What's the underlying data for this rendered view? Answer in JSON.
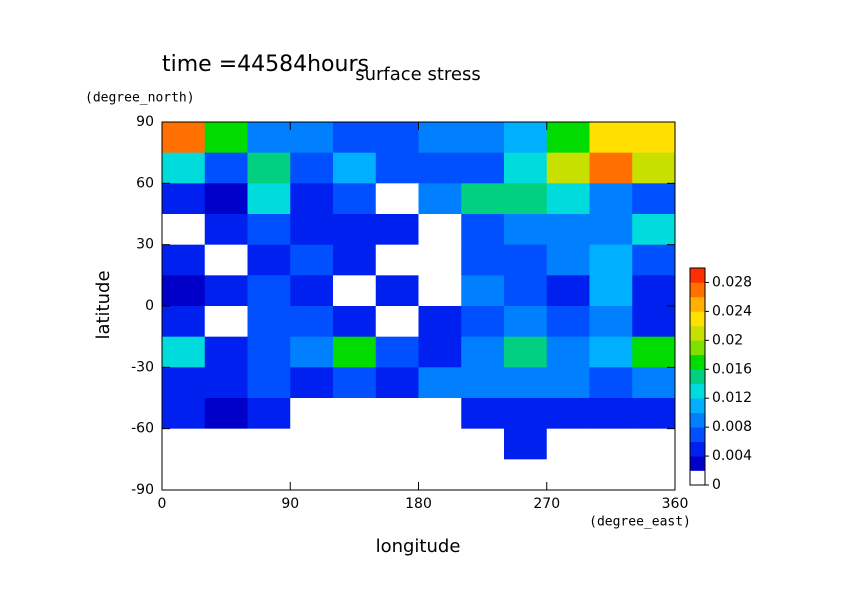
{
  "chart_data": {
    "type": "contour",
    "title": "surface stress",
    "subtitle": "time =44584hours",
    "x_label": "longitude",
    "x_unit": "(degree_east)",
    "y_label": "latitude",
    "y_unit": "(degree_north)",
    "xlim": [
      0,
      360
    ],
    "ylim": [
      -90,
      90
    ],
    "xticks": [
      0,
      90,
      180,
      270,
      360
    ],
    "yticks": [
      -90,
      -60,
      -30,
      0,
      30,
      60,
      90
    ],
    "x": [
      15,
      45,
      75,
      105,
      135,
      165,
      195,
      225,
      255,
      285,
      315,
      345
    ],
    "y": [
      82.5,
      67.5,
      52.5,
      37.5,
      22.5,
      7.5,
      -7.5,
      -22.5,
      -37.5,
      -52.5,
      -67.5,
      -82.5
    ],
    "values": [
      [
        0.026,
        0.016,
        0.008,
        0.008,
        0.006,
        0.006,
        0.008,
        0.008,
        0.01,
        0.016,
        0.022,
        0.022
      ],
      [
        0.012,
        0.006,
        0.014,
        0.006,
        0.01,
        0.006,
        0.006,
        0.006,
        0.012,
        0.02,
        0.026,
        0.02
      ],
      [
        0.004,
        0.002,
        0.012,
        0.004,
        0.006,
        0.001,
        0.008,
        0.014,
        0.014,
        0.012,
        0.008,
        0.006
      ],
      [
        0.001,
        0.004,
        0.006,
        0.004,
        0.004,
        0.004,
        0.001,
        0.006,
        0.008,
        0.008,
        0.008,
        0.012
      ],
      [
        0.004,
        0.001,
        0.004,
        0.006,
        0.004,
        0.001,
        0.001,
        0.006,
        0.006,
        0.008,
        0.01,
        0.006
      ],
      [
        0.002,
        0.004,
        0.006,
        0.004,
        0.001,
        0.004,
        0.001,
        0.008,
        0.006,
        0.004,
        0.01,
        0.004
      ],
      [
        0.004,
        0.001,
        0.006,
        0.006,
        0.004,
        0.001,
        0.004,
        0.006,
        0.008,
        0.006,
        0.008,
        0.004
      ],
      [
        0.012,
        0.004,
        0.006,
        0.008,
        0.016,
        0.006,
        0.004,
        0.008,
        0.014,
        0.008,
        0.01,
        0.016
      ],
      [
        0.004,
        0.004,
        0.006,
        0.004,
        0.006,
        0.004,
        0.008,
        0.008,
        0.008,
        0.008,
        0.006,
        0.008
      ],
      [
        0.004,
        0.002,
        0.004,
        0.001,
        0.001,
        0.001,
        0.001,
        0.004,
        0.004,
        0.004,
        0.004,
        0.004
      ],
      [
        0,
        0,
        0,
        0,
        0,
        0,
        0,
        0,
        0.004,
        0,
        0,
        0
      ],
      [
        0,
        0,
        0,
        0,
        0,
        0,
        0,
        0,
        0,
        0,
        0,
        0
      ]
    ],
    "colorbar": {
      "lim": [
        0,
        0.03
      ],
      "ticks": [
        0,
        0.004,
        0.008,
        0.012,
        0.016,
        0.02,
        0.024,
        0.028
      ],
      "colors": [
        "#ffffff",
        "#0000c8",
        "#0020f0",
        "#0050ff",
        "#0080ff",
        "#00b0ff",
        "#00dcdc",
        "#00d080",
        "#00dc00",
        "#80e000",
        "#c8e000",
        "#ffe000",
        "#ffb000",
        "#ff7000",
        "#ff3000"
      ]
    }
  }
}
